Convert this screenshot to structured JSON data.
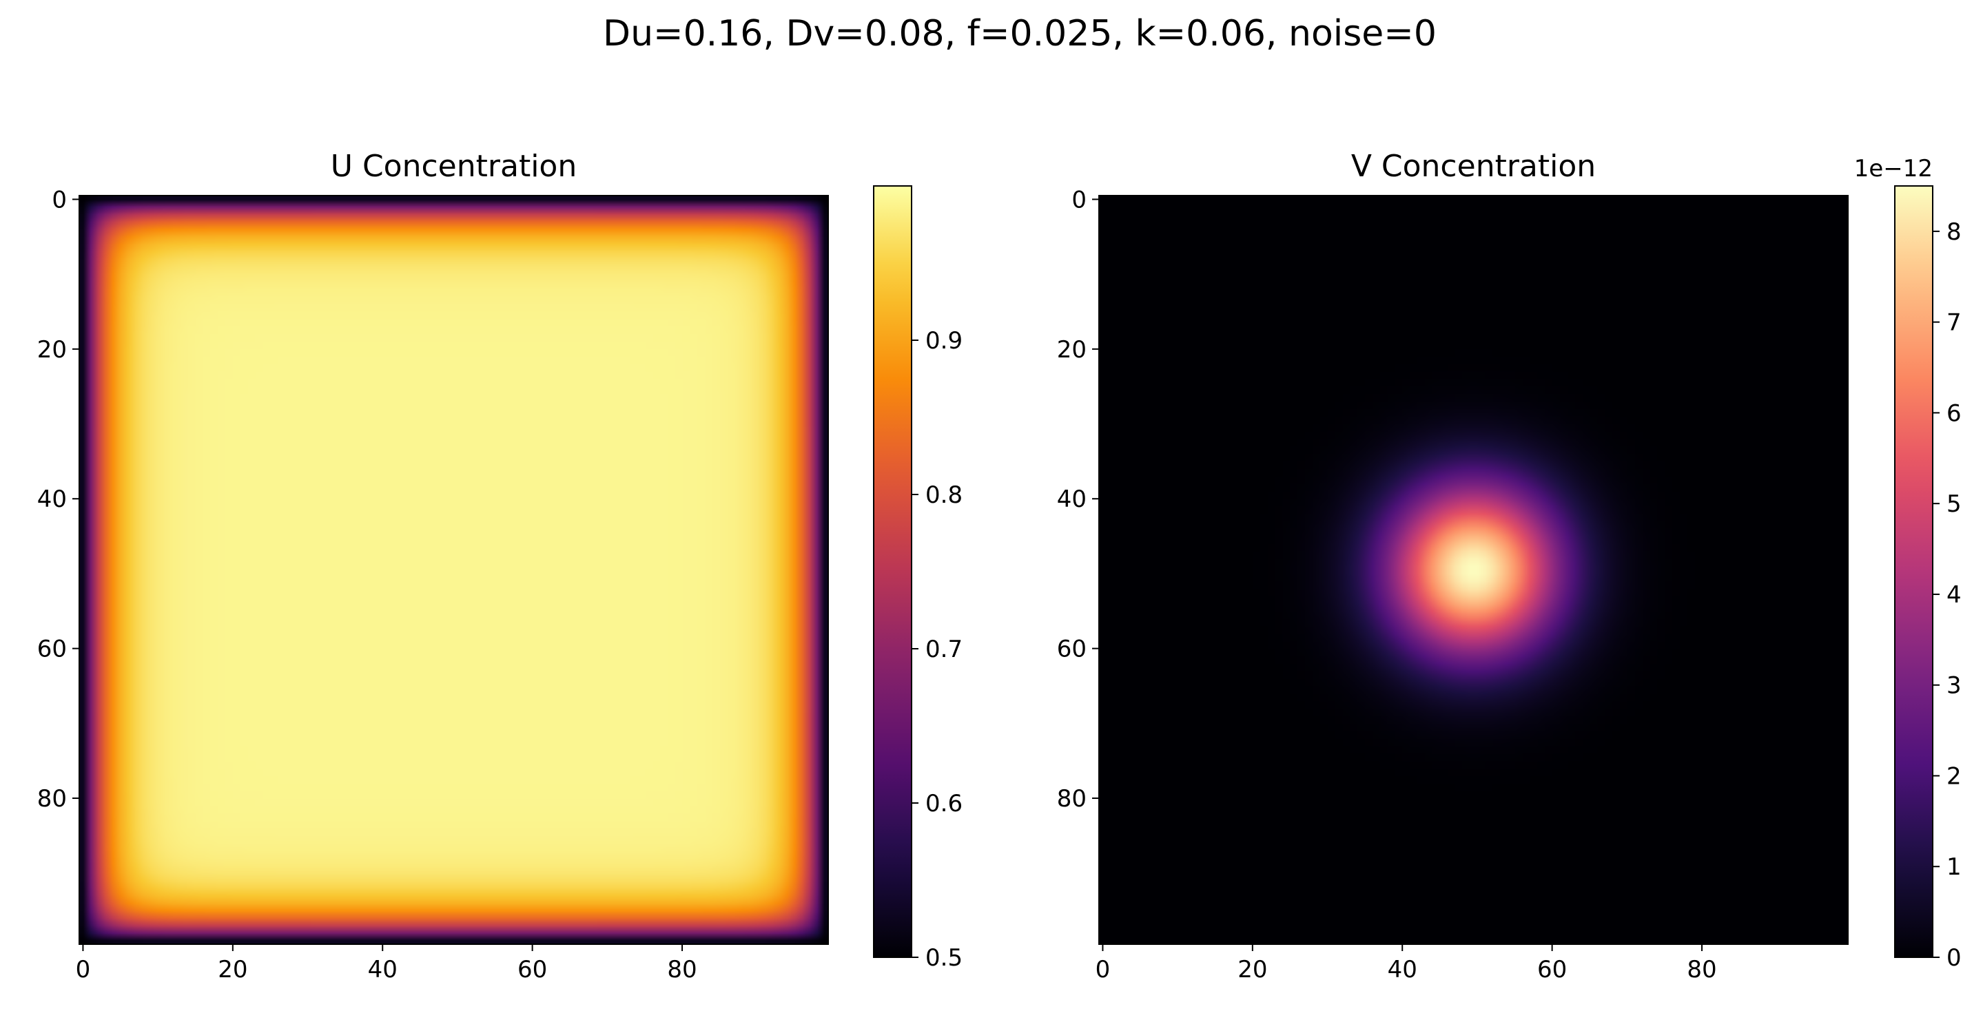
{
  "figure": {
    "suptitle": "Du=0.16, Dv=0.08, f=0.025, k=0.06, noise=0"
  },
  "chart_data": [
    {
      "type": "heatmap",
      "title": "U Concentration",
      "xlabel": "",
      "ylabel": "",
      "grid_size": [
        100,
        100
      ],
      "x_ticks": [
        0,
        20,
        40,
        60,
        80
      ],
      "y_ticks": [
        0,
        20,
        40,
        60,
        80
      ],
      "y_axis_inverted": true,
      "colormap": "inferno",
      "value_range": [
        0.5,
        1.0
      ],
      "field": {
        "shape": "box-plateau",
        "interior_value": 0.99,
        "boundary_value": 0.5,
        "edge_width_cells": 5
      },
      "colorbar": {
        "ticks": [
          0.5,
          0.6,
          0.7,
          0.8,
          0.9
        ],
        "tick_labels": [
          "0.5",
          "0.6",
          "0.7",
          "0.8",
          "0.9"
        ],
        "offset_label": ""
      }
    },
    {
      "type": "heatmap",
      "title": "V Concentration",
      "xlabel": "",
      "ylabel": "",
      "grid_size": [
        100,
        100
      ],
      "x_ticks": [
        0,
        20,
        40,
        60,
        80
      ],
      "y_ticks": [
        0,
        20,
        40,
        60,
        80
      ],
      "y_axis_inverted": true,
      "colormap": "magma",
      "value_range": [
        0,
        8.5e-12
      ],
      "field": {
        "shape": "gaussian",
        "center": [
          49.5,
          49.5
        ],
        "sigma_cells": 8,
        "peak_value": 8.5e-12
      },
      "colorbar": {
        "ticks": [
          0,
          1,
          2,
          3,
          4,
          5,
          6,
          7,
          8
        ],
        "tick_labels": [
          "0",
          "1",
          "2",
          "3",
          "4",
          "5",
          "6",
          "7",
          "8"
        ],
        "offset_label": "1e−12"
      }
    }
  ]
}
